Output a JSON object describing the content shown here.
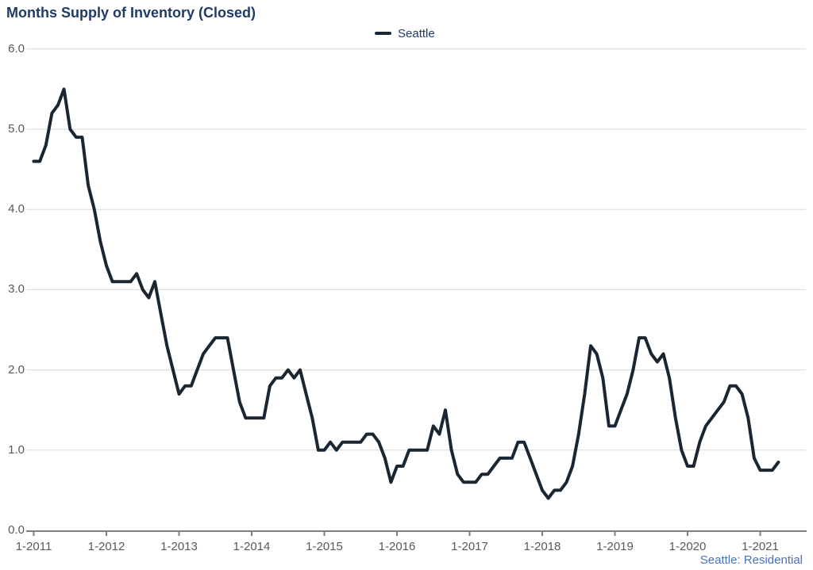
{
  "header": {
    "title": "Months Supply of Inventory (Closed)"
  },
  "legend": {
    "items": [
      {
        "label": "Seattle"
      }
    ]
  },
  "footer": {
    "text": "Seattle: Residential"
  },
  "colors": {
    "title": "#1f3b66",
    "series_line": "#1a2733",
    "axis_label": "#595959",
    "gridline": "#d9d9d9",
    "axis_line": "#7f7f7f",
    "footer_text": "#4472c4",
    "background": "#ffffff"
  },
  "chart_data": {
    "type": "line",
    "title": "Months Supply of Inventory (Closed)",
    "subtitle": "Seattle: Residential",
    "legend_entries": [
      "Seattle"
    ],
    "legend_position": "top-center",
    "grid": "horizontal-only",
    "ylim": [
      0,
      6
    ],
    "y_tick_labels": [
      "0.0",
      "1.0",
      "2.0",
      "3.0",
      "4.0",
      "5.0",
      "6.0"
    ],
    "x_tick_labels": [
      "1-2011",
      "1-2012",
      "1-2013",
      "1-2014",
      "1-2015",
      "1-2016",
      "1-2017",
      "1-2018",
      "1-2019",
      "1-2020",
      "1-2021"
    ],
    "x_frequency": "monthly",
    "x_start": "January 2011",
    "x_end": "April 2021",
    "series": [
      {
        "name": "Seattle",
        "values": [
          4.6,
          4.6,
          4.8,
          5.2,
          5.3,
          5.5,
          5.0,
          4.9,
          4.9,
          4.3,
          4.0,
          3.6,
          3.3,
          3.1,
          3.1,
          3.1,
          3.1,
          3.2,
          3.0,
          2.9,
          3.1,
          2.7,
          2.3,
          2.0,
          1.7,
          1.8,
          1.8,
          2.0,
          2.2,
          2.3,
          2.4,
          2.4,
          2.4,
          2.0,
          1.6,
          1.4,
          1.4,
          1.4,
          1.4,
          1.8,
          1.9,
          1.9,
          2.0,
          1.9,
          2.0,
          1.7,
          1.4,
          1.0,
          1.0,
          1.1,
          1.0,
          1.1,
          1.1,
          1.1,
          1.1,
          1.2,
          1.2,
          1.1,
          0.9,
          0.6,
          0.8,
          0.8,
          1.0,
          1.0,
          1.0,
          1.0,
          1.3,
          1.2,
          1.5,
          1.0,
          0.7,
          0.6,
          0.6,
          0.6,
          0.7,
          0.7,
          0.8,
          0.9,
          0.9,
          0.9,
          1.1,
          1.1,
          0.9,
          0.7,
          0.5,
          0.4,
          0.5,
          0.5,
          0.6,
          0.8,
          1.2,
          1.7,
          2.3,
          2.2,
          1.9,
          1.3,
          1.3,
          1.5,
          1.7,
          2.0,
          2.4,
          2.4,
          2.2,
          2.1,
          2.2,
          1.9,
          1.4,
          1.0,
          0.8,
          0.8,
          1.1,
          1.3,
          1.4,
          1.5,
          1.6,
          1.8,
          1.8,
          1.7,
          1.4,
          0.9,
          0.75,
          0.75,
          0.75,
          0.85
        ]
      }
    ]
  }
}
